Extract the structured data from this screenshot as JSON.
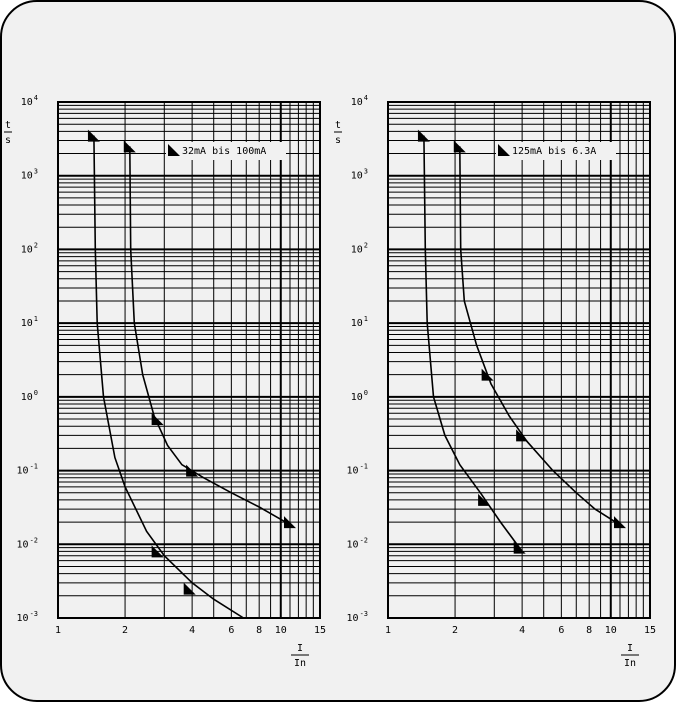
{
  "chart_data": [
    {
      "type": "line",
      "x_scale": "log",
      "y_scale": "log",
      "xlim": [
        1,
        15
      ],
      "ylim": [
        0.001,
        10000
      ],
      "x_ticks": [
        1,
        2,
        4,
        6,
        8,
        10,
        15
      ],
      "x_tick_labels": [
        "1",
        "2",
        "4",
        "6",
        "8",
        "10",
        "15"
      ],
      "y_ticks": [
        0.001,
        0.01,
        0.1,
        1,
        10,
        100,
        1000,
        10000
      ],
      "y_tick_labels": [
        {
          "base": "10",
          "exp": "-3"
        },
        {
          "base": "10",
          "exp": "-2"
        },
        {
          "base": "10",
          "exp": "-1"
        },
        {
          "base": "10",
          "exp": "0"
        },
        {
          "base": "10",
          "exp": "1"
        },
        {
          "base": "10",
          "exp": "2"
        },
        {
          "base": "10",
          "exp": "3"
        },
        {
          "base": "10",
          "exp": "4"
        }
      ],
      "ylabel": {
        "num": "t",
        "den": "s"
      },
      "xlabel": {
        "num": "I",
        "den": "In"
      },
      "legend": "32mA bis 100mA",
      "legend_placement": "top-center",
      "grid": true,
      "series": [
        {
          "values": [
            [
              1.45,
              3500
            ],
            [
              1.47,
              100
            ],
            [
              1.5,
              10
            ],
            [
              1.6,
              1
            ],
            [
              1.8,
              0.15
            ],
            [
              2.0,
              0.06
            ],
            [
              2.5,
              0.015
            ],
            [
              3.0,
              0.007
            ],
            [
              4.0,
              0.003
            ],
            [
              5.0,
              0.0018
            ],
            [
              6.8,
              0.001
            ]
          ]
        },
        {
          "values": [
            [
              2.1,
              2500
            ],
            [
              2.12,
              100
            ],
            [
              2.2,
              10
            ],
            [
              2.4,
              2
            ],
            [
              2.7,
              0.55
            ],
            [
              3.1,
              0.22
            ],
            [
              3.6,
              0.12
            ],
            [
              4.5,
              0.08
            ],
            [
              6.0,
              0.05
            ],
            [
              8.0,
              0.032
            ],
            [
              10.5,
              0.02
            ]
          ]
        }
      ],
      "markers": [
        {
          "x": 1.45,
          "y": 3500
        },
        {
          "x": 2.1,
          "y": 2500
        },
        {
          "x": 2.8,
          "y": 0.5
        },
        {
          "x": 4.0,
          "y": 0.1
        },
        {
          "x": 11.0,
          "y": 0.02
        },
        {
          "x": 2.8,
          "y": 0.008
        },
        {
          "x": 3.9,
          "y": 0.0025
        }
      ]
    },
    {
      "type": "line",
      "x_scale": "log",
      "y_scale": "log",
      "xlim": [
        1,
        15
      ],
      "ylim": [
        0.001,
        10000
      ],
      "x_ticks": [
        1,
        2,
        4,
        6,
        8,
        10,
        15
      ],
      "x_tick_labels": [
        "1",
        "2",
        "4",
        "6",
        "8",
        "10",
        "15"
      ],
      "y_ticks": [
        0.001,
        0.01,
        0.1,
        1,
        10,
        100,
        1000,
        10000
      ],
      "y_tick_labels": [
        {
          "base": "10",
          "exp": "-3"
        },
        {
          "base": "10",
          "exp": "-2"
        },
        {
          "base": "10",
          "exp": "-1"
        },
        {
          "base": "10",
          "exp": "0"
        },
        {
          "base": "10",
          "exp": "1"
        },
        {
          "base": "10",
          "exp": "2"
        },
        {
          "base": "10",
          "exp": "3"
        },
        {
          "base": "10",
          "exp": "4"
        }
      ],
      "ylabel": {
        "num": "t",
        "den": "s"
      },
      "xlabel": {
        "num": "I",
        "den": "In"
      },
      "legend": "125mA bis 6.3A",
      "legend_placement": "top-center",
      "grid": true,
      "series": [
        {
          "values": [
            [
              1.45,
              3500
            ],
            [
              1.47,
              100
            ],
            [
              1.5,
              10
            ],
            [
              1.6,
              1
            ],
            [
              1.8,
              0.3
            ],
            [
              2.1,
              0.12
            ],
            [
              2.6,
              0.05
            ],
            [
              3.2,
              0.02
            ],
            [
              4.0,
              0.008
            ]
          ]
        },
        {
          "values": [
            [
              2.1,
              2500
            ],
            [
              2.12,
              100
            ],
            [
              2.2,
              20
            ],
            [
              2.5,
              5
            ],
            [
              2.9,
              1.5
            ],
            [
              3.5,
              0.55
            ],
            [
              4.2,
              0.25
            ],
            [
              5.5,
              0.1
            ],
            [
              7.0,
              0.05
            ],
            [
              8.5,
              0.03
            ],
            [
              10.5,
              0.02
            ]
          ]
        }
      ],
      "markers": [
        {
          "x": 1.45,
          "y": 3500
        },
        {
          "x": 2.1,
          "y": 2500
        },
        {
          "x": 2.8,
          "y": 2.0
        },
        {
          "x": 4.0,
          "y": 0.3
        },
        {
          "x": 11.0,
          "y": 0.02
        },
        {
          "x": 2.7,
          "y": 0.04
        },
        {
          "x": 3.9,
          "y": 0.009
        }
      ]
    }
  ]
}
